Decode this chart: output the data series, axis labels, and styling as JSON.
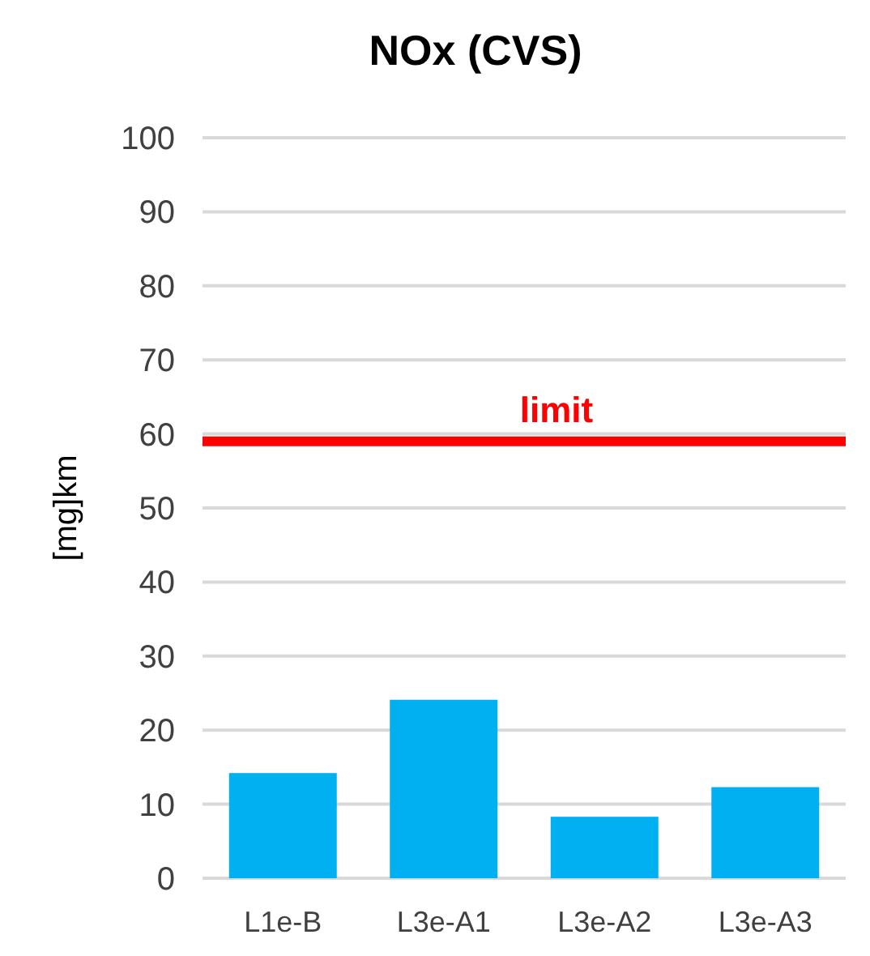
{
  "chart_data": {
    "type": "bar",
    "title": "NOx (CVS)",
    "ylabel": "[mg]km",
    "categories": [
      "L1e-B",
      "L3e-A1",
      "L3e-A2",
      "L3e-A3"
    ],
    "values": [
      14.2,
      24.1,
      8.3,
      12.3
    ],
    "color": "#00b0f0",
    "ylim": [
      0,
      100
    ],
    "yticks": [
      0,
      10,
      20,
      30,
      40,
      50,
      60,
      70,
      80,
      90,
      100
    ],
    "grid": "y",
    "ref_lines": [
      {
        "axis": "y",
        "value": 59,
        "label": "limit",
        "color": "#ff0000"
      }
    ]
  }
}
